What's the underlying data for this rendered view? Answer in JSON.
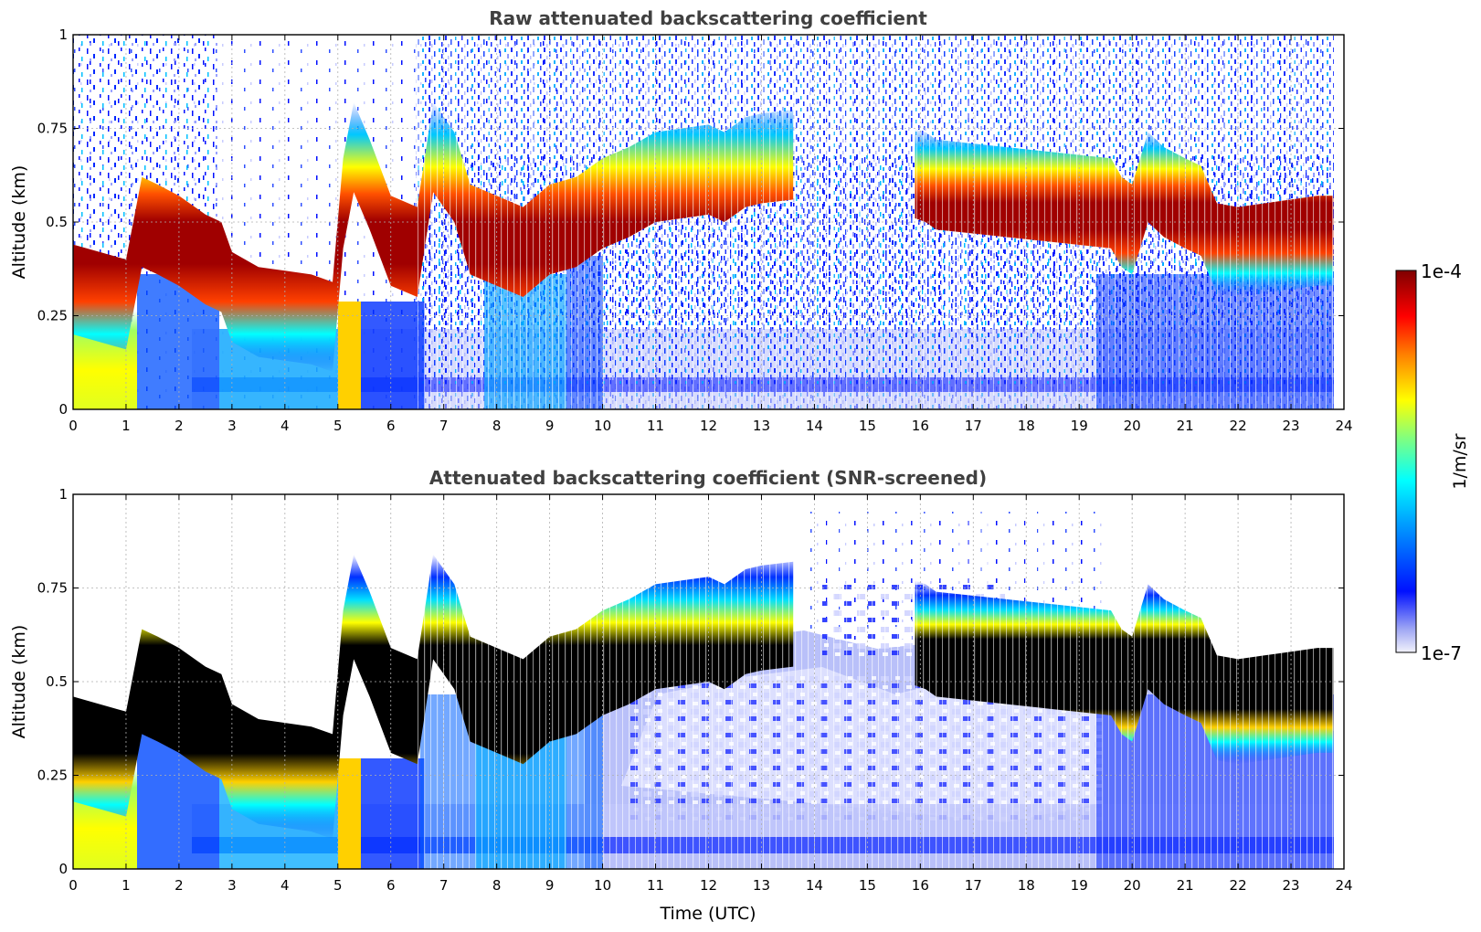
{
  "chart_data": [
    {
      "type": "heatmap",
      "title": "Raw attenuated backscattering coefficient",
      "xlabel": "",
      "ylabel": "Altitude (km)",
      "xlim": [
        0,
        24
      ],
      "ylim": [
        0,
        1
      ],
      "x_ticks": [
        "0",
        "1",
        "2",
        "3",
        "4",
        "5",
        "6",
        "7",
        "8",
        "9",
        "10",
        "11",
        "12",
        "13",
        "14",
        "15",
        "16",
        "17",
        "18",
        "19",
        "20",
        "21",
        "22",
        "23",
        "24"
      ],
      "y_ticks": [
        "0",
        "0.25",
        "0.5",
        "0.75",
        "1"
      ],
      "grid": true,
      "layer_profile": {
        "time_utc": [
          0,
          0.5,
          1,
          1.3,
          1.6,
          2,
          2.5,
          2.8,
          3,
          3.5,
          4,
          4.5,
          4.9,
          5.1,
          5.3,
          5.6,
          6,
          6.5,
          6.8,
          7.2,
          7.5,
          8,
          8.5,
          9,
          9.5,
          10,
          10.5,
          11,
          11.5,
          12,
          12.3,
          12.7,
          13,
          13.6
        ],
        "layer_altitude_km": [
          0.32,
          0.3,
          0.28,
          0.5,
          0.48,
          0.45,
          0.4,
          0.38,
          0.3,
          0.26,
          0.25,
          0.24,
          0.22,
          0.55,
          0.7,
          0.6,
          0.45,
          0.42,
          0.7,
          0.62,
          0.48,
          0.45,
          0.42,
          0.48,
          0.5,
          0.55,
          0.58,
          0.62,
          0.63,
          0.64,
          0.62,
          0.66,
          0.67,
          0.68
        ]
      },
      "layer_profile_late": {
        "time_utc": [
          15.9,
          16.1,
          16.3,
          19.6,
          19.8,
          20.0,
          20.3,
          20.6,
          21.0,
          21.3,
          21.6,
          22,
          22.5,
          23,
          23.5,
          23.8
        ],
        "layer_altitude_km": [
          0.63,
          0.62,
          0.6,
          0.55,
          0.5,
          0.48,
          0.62,
          0.58,
          0.55,
          0.53,
          0.43,
          0.42,
          0.43,
          0.44,
          0.45,
          0.45
        ]
      },
      "data_end_utc": 23.8
    },
    {
      "type": "heatmap",
      "title": "Attenuated backscattering coefficient (SNR-screened)",
      "xlabel": "Time (UTC)",
      "ylabel": "Altitude (km)",
      "xlim": [
        0,
        24
      ],
      "ylim": [
        0,
        1
      ],
      "x_ticks": [
        "0",
        "1",
        "2",
        "3",
        "4",
        "5",
        "6",
        "7",
        "8",
        "9",
        "10",
        "11",
        "12",
        "13",
        "14",
        "15",
        "16",
        "17",
        "18",
        "19",
        "20",
        "21",
        "22",
        "23",
        "24"
      ],
      "y_ticks": [
        "0",
        "0.25",
        "0.5",
        "0.75",
        "1"
      ],
      "grid": true,
      "saturated_color": "#000000"
    }
  ],
  "colorbar": {
    "min_label": "1e-7",
    "max_label": "1e-4",
    "unit": "1/m/sr",
    "scale": "log",
    "colormap": [
      "#f2f2fb",
      "#a0a8f4",
      "#0010ff",
      "#00a0ff",
      "#00ffff",
      "#80ff80",
      "#ffff00",
      "#ff8000",
      "#ff0000",
      "#800000"
    ]
  }
}
